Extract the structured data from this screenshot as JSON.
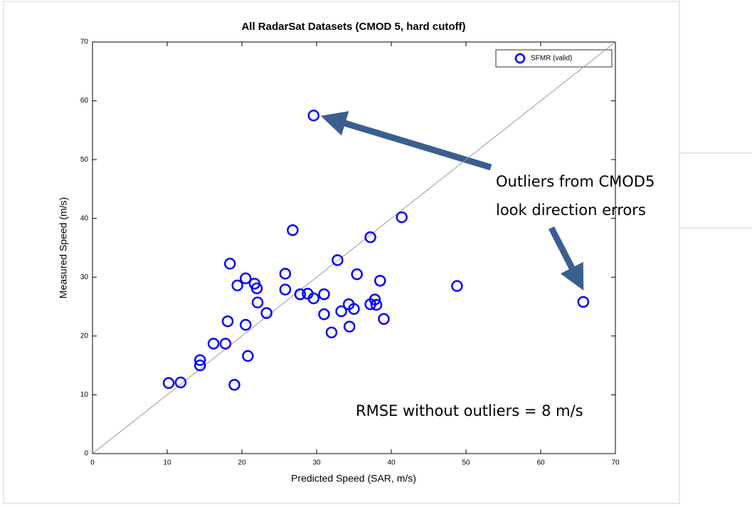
{
  "chart_data": {
    "type": "scatter",
    "title": "All RadarSat Datasets (CMOD 5, hard cutoff)",
    "x_label": "Predicted Speed (SAR, m/s)",
    "y_label": "Measured Speed (m/s)",
    "xlim": [
      0,
      70
    ],
    "ylim": [
      0,
      70
    ],
    "xticks": [
      0,
      10,
      20,
      30,
      40,
      50,
      60,
      70
    ],
    "yticks": [
      0,
      10,
      20,
      30,
      40,
      50,
      60,
      70
    ],
    "grid": false,
    "legend": "upper right",
    "annotations": [
      "Outliers from CMOD5",
      "look direction errors",
      "RMSE without outliers = 8 m/s"
    ],
    "series": [
      {
        "name": "SFMR (valid)",
        "color": "#0000ff",
        "x": [
          29.6,
          41.4,
          26.8,
          37.2,
          32.8,
          18.4,
          25.8,
          35.4,
          20.5,
          21.7,
          19.4,
          38.5,
          22.0,
          48.8,
          25.8,
          28.8,
          27.8,
          31.0,
          29.6,
          37.8,
          22.1,
          34.3,
          37.2,
          38.0,
          65.7,
          35.0,
          33.3,
          23.3,
          31.0,
          39.0,
          18.1,
          20.5,
          34.4,
          32.0,
          16.2,
          17.8,
          20.8,
          14.4,
          14.4,
          10.2,
          11.8,
          19.0
        ],
        "values": [
          57.5,
          40.2,
          38.0,
          36.8,
          32.9,
          32.3,
          30.6,
          30.5,
          29.8,
          28.9,
          28.6,
          29.4,
          28.1,
          28.5,
          27.9,
          27.2,
          27.1,
          27.1,
          26.4,
          26.2,
          25.7,
          25.4,
          25.4,
          25.3,
          25.8,
          24.6,
          24.2,
          23.9,
          23.7,
          22.9,
          22.5,
          21.9,
          21.6,
          20.6,
          18.7,
          18.7,
          16.6,
          15.9,
          15.0,
          12.0,
          12.1,
          11.7
        ]
      }
    ]
  }
}
